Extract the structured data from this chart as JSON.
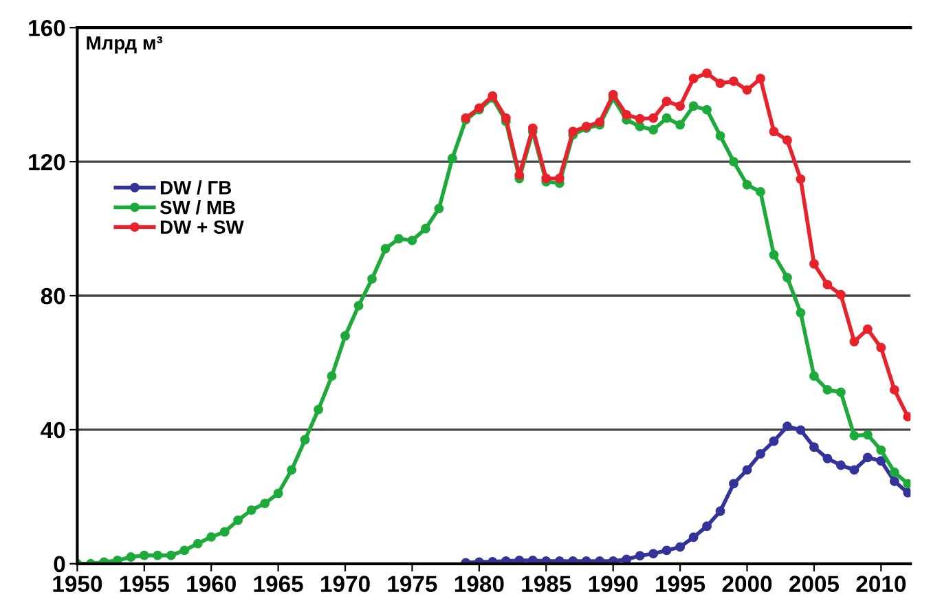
{
  "chart_data": {
    "type": "line",
    "ylabel": "Млрд м³",
    "x": [
      1950,
      1951,
      1952,
      1953,
      1954,
      1955,
      1956,
      1957,
      1958,
      1959,
      1960,
      1961,
      1962,
      1963,
      1964,
      1965,
      1966,
      1967,
      1968,
      1969,
      1970,
      1971,
      1972,
      1973,
      1974,
      1975,
      1976,
      1977,
      1978,
      1979,
      1980,
      1981,
      1982,
      1983,
      1984,
      1985,
      1986,
      1987,
      1988,
      1989,
      1990,
      1991,
      1992,
      1993,
      1994,
      1995,
      1996,
      1997,
      1998,
      1999,
      2000,
      2001,
      2002,
      2003,
      2004,
      2005,
      2006,
      2007,
      2008,
      2009,
      2010,
      2011,
      2012
    ],
    "series": [
      {
        "name": "DW / ГВ",
        "color": "#33339a",
        "values": [
          null,
          null,
          null,
          null,
          null,
          null,
          null,
          null,
          null,
          null,
          null,
          null,
          null,
          null,
          null,
          null,
          null,
          null,
          null,
          null,
          null,
          null,
          null,
          null,
          null,
          null,
          null,
          null,
          null,
          0.3,
          0.5,
          0.6,
          0.8,
          1,
          1,
          0.8,
          0.8,
          0.8,
          0.8,
          0.8,
          0.8,
          1.3,
          2.4,
          3,
          4,
          5,
          7.9,
          11.2,
          15.7,
          23.9,
          28,
          32.8,
          36.6,
          41,
          39.9,
          34.8,
          31.4,
          29.4,
          28,
          31.7,
          30.7,
          24.6,
          21.2
        ]
      },
      {
        "name": "SW / МВ",
        "color": "#1daa3a",
        "values": [
          0,
          0,
          0.5,
          1,
          2,
          2.5,
          2.5,
          2.5,
          4,
          6,
          8,
          9.5,
          13,
          16,
          18,
          21,
          28,
          37,
          46,
          56,
          68,
          77,
          85,
          94,
          97,
          96.5,
          100,
          106,
          121,
          132.5,
          135.5,
          139,
          132,
          115,
          129,
          114,
          113.6,
          128,
          130,
          131,
          139,
          132.5,
          130.5,
          129.5,
          133,
          131,
          136.6,
          135.5,
          127.7,
          120,
          113.1,
          111,
          92.2,
          85.4,
          74.9,
          56,
          51.9,
          51.2,
          38.2,
          38.5,
          33.9,
          27.3,
          23.9
        ]
      },
      {
        "name": "DW + SW",
        "color": "#e8212a",
        "values": [
          null,
          null,
          null,
          null,
          null,
          null,
          null,
          null,
          null,
          null,
          null,
          null,
          null,
          null,
          null,
          null,
          null,
          null,
          null,
          null,
          null,
          null,
          null,
          null,
          null,
          null,
          null,
          null,
          null,
          133,
          136,
          139.6,
          133,
          116,
          130,
          115,
          115,
          129,
          130.5,
          131.8,
          140,
          134,
          132.8,
          133,
          138,
          136.6,
          144.8,
          146.4,
          143.4,
          144,
          141.4,
          144.8,
          129,
          126.4,
          114.8,
          89.5,
          83.3,
          80.3,
          66.3,
          70,
          64.5,
          51.9,
          43.9
        ]
      }
    ],
    "xlim": [
      1950,
      2012.2
    ],
    "xticks": [
      1950,
      1955,
      1960,
      1965,
      1970,
      1975,
      1980,
      1985,
      1990,
      1995,
      2000,
      2005,
      2010
    ],
    "ylim": [
      0,
      160
    ],
    "yticks": [
      0,
      40,
      80,
      120,
      160
    ],
    "grid": "y",
    "legend": "top left",
    "marker": "circle",
    "line_style": "solid"
  }
}
